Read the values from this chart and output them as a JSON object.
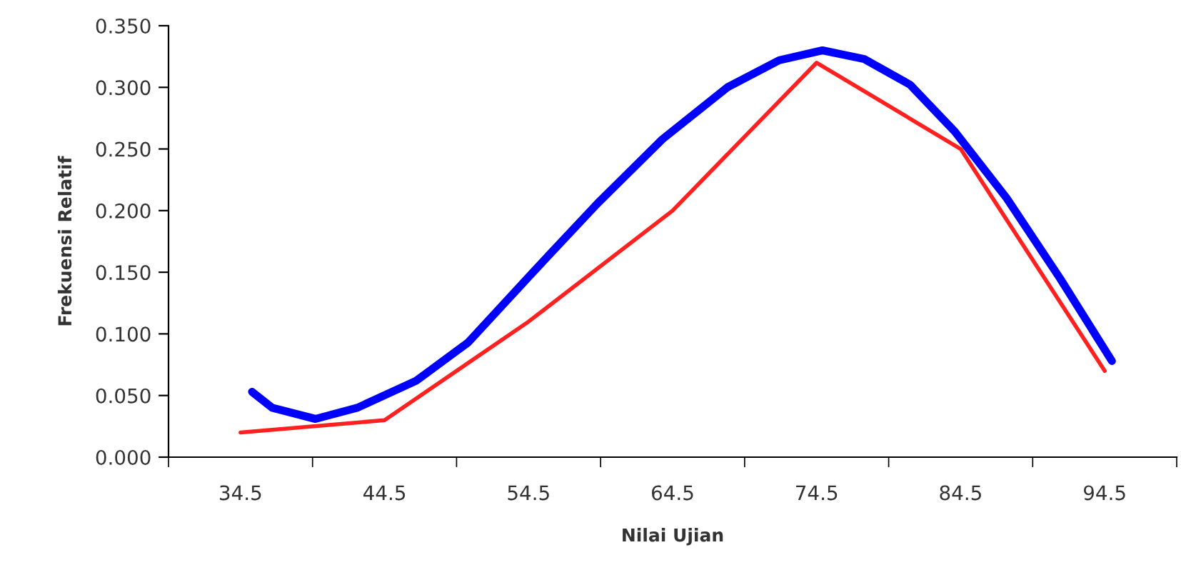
{
  "chart_data": {
    "type": "line",
    "xlabel": "Nilai Ujian",
    "ylabel": "Frekuensi Relatif",
    "xlim": [
      29.5,
      99.5
    ],
    "xticks": [
      {
        "value": 29.5,
        "label": null
      },
      {
        "value": 34.5,
        "label": "34.5"
      },
      {
        "value": 39.5,
        "label": null
      },
      {
        "value": 44.5,
        "label": "44.5"
      },
      {
        "value": 49.5,
        "label": null
      },
      {
        "value": 54.5,
        "label": "54.5"
      },
      {
        "value": 59.5,
        "label": null
      },
      {
        "value": 64.5,
        "label": "64.5"
      },
      {
        "value": 69.5,
        "label": null
      },
      {
        "value": 74.5,
        "label": "74.5"
      },
      {
        "value": 79.5,
        "label": null
      },
      {
        "value": 84.5,
        "label": "84.5"
      },
      {
        "value": 89.5,
        "label": null
      },
      {
        "value": 94.5,
        "label": "94.5"
      },
      {
        "value": 99.5,
        "label": null
      }
    ],
    "ylim": [
      0,
      0.35
    ],
    "yticks": [
      {
        "value": 0,
        "label": "0.000"
      },
      {
        "value": 0.05,
        "label": "0.050"
      },
      {
        "value": 0.1,
        "label": "0.100"
      },
      {
        "value": 0.15,
        "label": "0.150"
      },
      {
        "value": 0.2,
        "label": "0.200"
      },
      {
        "value": 0.25,
        "label": "0.250"
      },
      {
        "value": 0.3,
        "label": "0.300"
      },
      {
        "value": 0.35,
        "label": "0.350"
      }
    ],
    "grid": false,
    "legend": false,
    "marker": "none",
    "series": [
      {
        "color": "#ff2020",
        "x": [
          34.5,
          44.5,
          54.5,
          64.5,
          74.5,
          84.5,
          94.5
        ],
        "values": [
          0.02,
          0.03,
          0.11,
          0.2,
          0.32,
          0.25,
          0.07
        ]
      },
      {
        "color": "#0000ff",
        "x": [
          35.3,
          36.7,
          39.7,
          42.6,
          46.7,
          50.3,
          54.8,
          59.3,
          63.8,
          68.3,
          71.9,
          74.9,
          77.8,
          81.0,
          84.1,
          87.7,
          91.4,
          95.0
        ],
        "values": [
          0.053,
          0.04,
          0.031,
          0.04,
          0.062,
          0.093,
          0.15,
          0.206,
          0.258,
          0.3,
          0.322,
          0.33,
          0.323,
          0.302,
          0.264,
          0.21,
          0.145,
          0.078
        ]
      }
    ]
  }
}
